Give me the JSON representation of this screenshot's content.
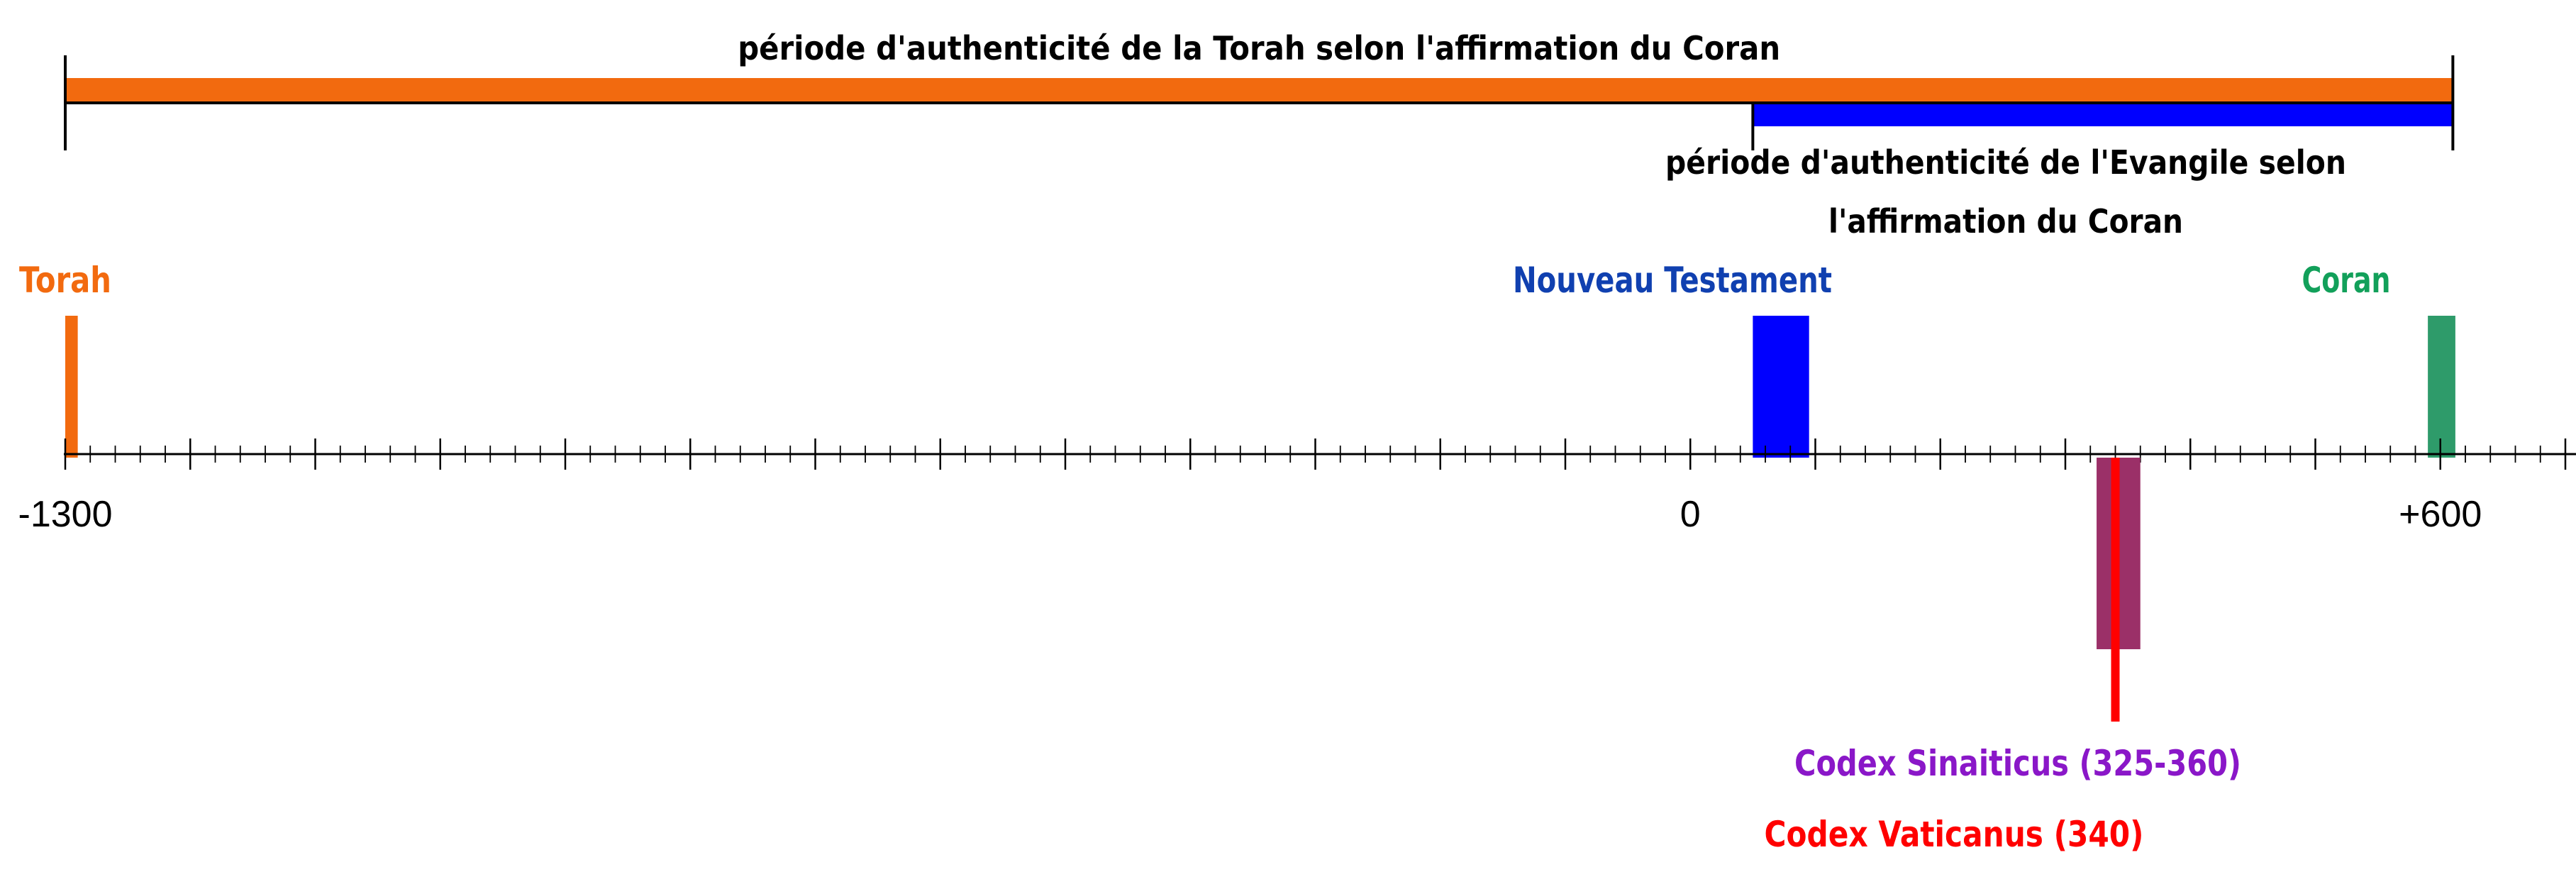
{
  "timeline": {
    "start": -1300,
    "end": 800,
    "major_step": 100,
    "minor_step": 20,
    "tick_labels": [
      {
        "value": -1300,
        "text": "-1300"
      },
      {
        "value": 0,
        "text": "0"
      },
      {
        "value": 600,
        "text": "+600"
      }
    ]
  },
  "periods": [
    {
      "id": "torah-period",
      "from": -1300,
      "to": 610,
      "color": "#F26A0F",
      "label_lines": [
        "période d'authenticité de la Torah selon l'affirmation du Coran"
      ]
    },
    {
      "id": "gospel-period",
      "from": 50,
      "to": 610,
      "color": "#0000FF",
      "label_lines": [
        "période d'authenticité de l'Evangile selon",
        "l'affirmation du Coran"
      ]
    }
  ],
  "markers": [
    {
      "id": "torah",
      "label": "Torah",
      "from": -1300,
      "to": -1290,
      "color": "#F26A0F",
      "label_color": "#F26A0F"
    },
    {
      "id": "nouveau-testament",
      "label": "Nouveau Testament",
      "from": 50,
      "to": 95,
      "color": "#0000FF",
      "label_color": "#1040B0"
    },
    {
      "id": "coran",
      "label": "Coran",
      "from": 590,
      "to": 612,
      "color": "#2E9B6A",
      "label_color": "#12A05A"
    }
  ],
  "codices": [
    {
      "id": "codex-sinaiticus",
      "label": "Codex Sinaiticus (325-360)",
      "from": 325,
      "to": 360,
      "color": "#9B3068",
      "label_color": "#8A17C8"
    },
    {
      "id": "codex-vaticanus",
      "label": "Codex Vaticanus (340)",
      "at": 340,
      "color": "#FF0000",
      "label_color": "#FF0000"
    }
  ]
}
